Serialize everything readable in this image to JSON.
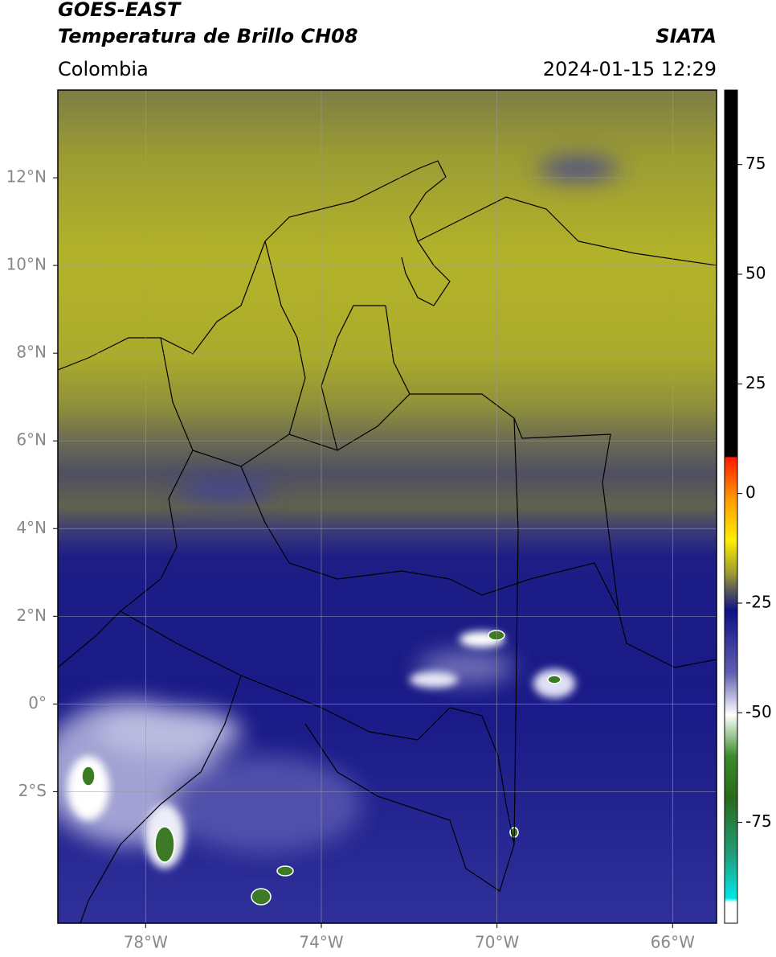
{
  "header": {
    "title": "GOES-EAST",
    "subtitle": "Temperatura de Brillo CH08",
    "source": "SIATA",
    "region": "Colombia",
    "datetime": "2024-01-15 12:29"
  },
  "map": {
    "lat_range": [
      -5,
      14
    ],
    "lon_range": [
      -80,
      -65
    ],
    "lat_ticks": [
      {
        "value": 12,
        "label": "12°N"
      },
      {
        "value": 10,
        "label": "10°N"
      },
      {
        "value": 8,
        "label": "8°N"
      },
      {
        "value": 6,
        "label": "6°N"
      },
      {
        "value": 4,
        "label": "4°N"
      },
      {
        "value": 2,
        "label": "2°N"
      },
      {
        "value": 0,
        "label": "0°"
      },
      {
        "value": -2,
        "label": "2°S"
      }
    ],
    "lon_ticks": [
      {
        "value": -78,
        "label": "78°W"
      },
      {
        "value": -74,
        "label": "74°W"
      },
      {
        "value": -70,
        "label": "70°W"
      },
      {
        "value": -66,
        "label": "66°W"
      }
    ]
  },
  "colorbar": {
    "range": [
      -98,
      92
    ],
    "ticks": [
      75,
      50,
      25,
      0,
      -25,
      -50,
      -75
    ]
  }
}
